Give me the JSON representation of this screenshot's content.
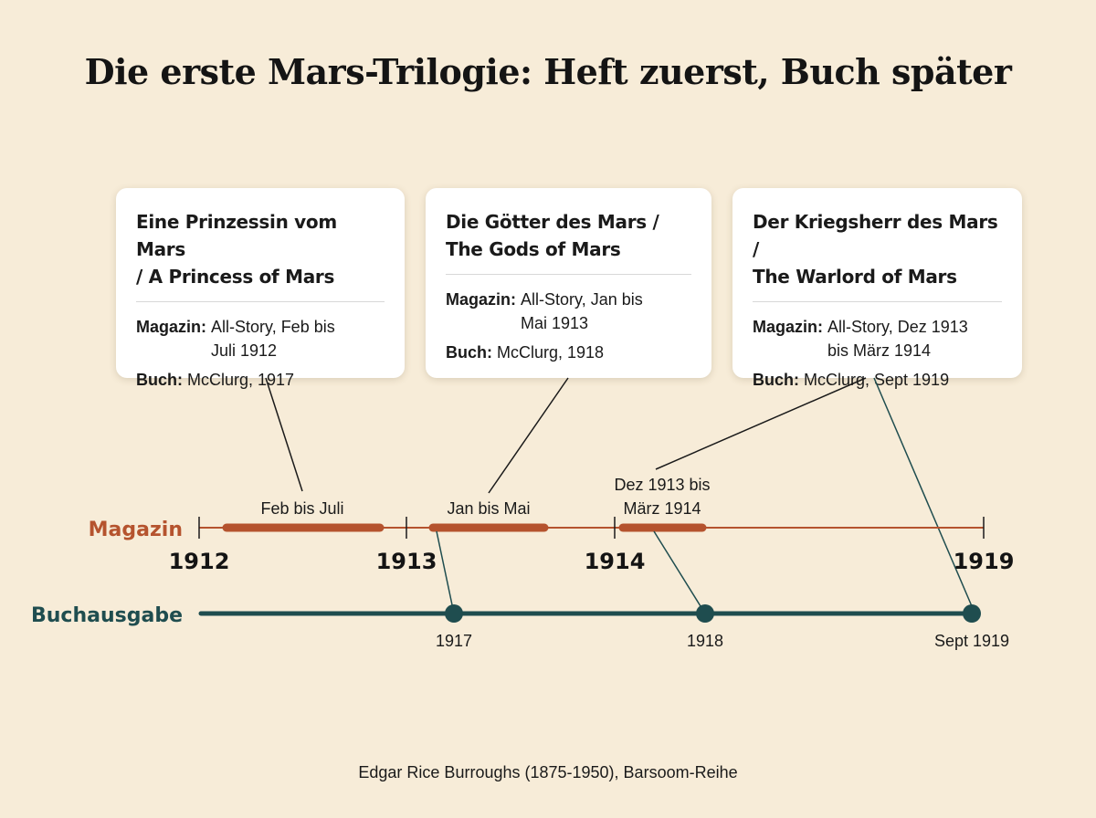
{
  "title": "Die erste Mars-Trilogie: Heft zuerst, Buch später",
  "colors": {
    "magazine": "#b5532e",
    "book": "#1f4d4f",
    "background": "#f7ecd8"
  },
  "rows": {
    "magazine_label": "Magazin",
    "book_label": "Buchausgabe"
  },
  "axis_labels": [
    "1912",
    "1913",
    "1914",
    "1919"
  ],
  "magazine_segments": [
    {
      "label_lines": [
        "Feb bis Juli"
      ]
    },
    {
      "label_lines": [
        "Jan bis Mai"
      ]
    },
    {
      "label_lines": [
        "Dez 1913 bis",
        "März 1914"
      ]
    }
  ],
  "book_points": [
    {
      "label": "1917"
    },
    {
      "label": "1918"
    },
    {
      "label": "Sept 1919"
    }
  ],
  "cards": [
    {
      "title_lines": [
        "Eine Prinzessin vom Mars",
        "/ A Princess of Mars"
      ],
      "magazine_label": "Magazin:",
      "magazine_lines": [
        "All-Story, Feb bis",
        "Juli 1912"
      ],
      "book_label": "Buch:",
      "book_value": "McClurg, 1917"
    },
    {
      "title_lines": [
        "Die Götter des Mars /",
        "The Gods of Mars"
      ],
      "magazine_label": "Magazin:",
      "magazine_lines": [
        "All-Story, Jan bis",
        "Mai 1913"
      ],
      "book_label": "Buch:",
      "book_value": "McClurg, 1918"
    },
    {
      "title_lines": [
        "Der Kriegsherr des Mars /",
        "The Warlord of Mars"
      ],
      "magazine_label": "Magazin:",
      "magazine_lines": [
        "All-Story, Dez 1913",
        "bis März 1914"
      ],
      "book_label": "Buch:",
      "book_value": "McClurg, Sept 1919"
    }
  ],
  "footnote": "Edgar Rice Burroughs (1875-1950), Barsoom-Reihe"
}
